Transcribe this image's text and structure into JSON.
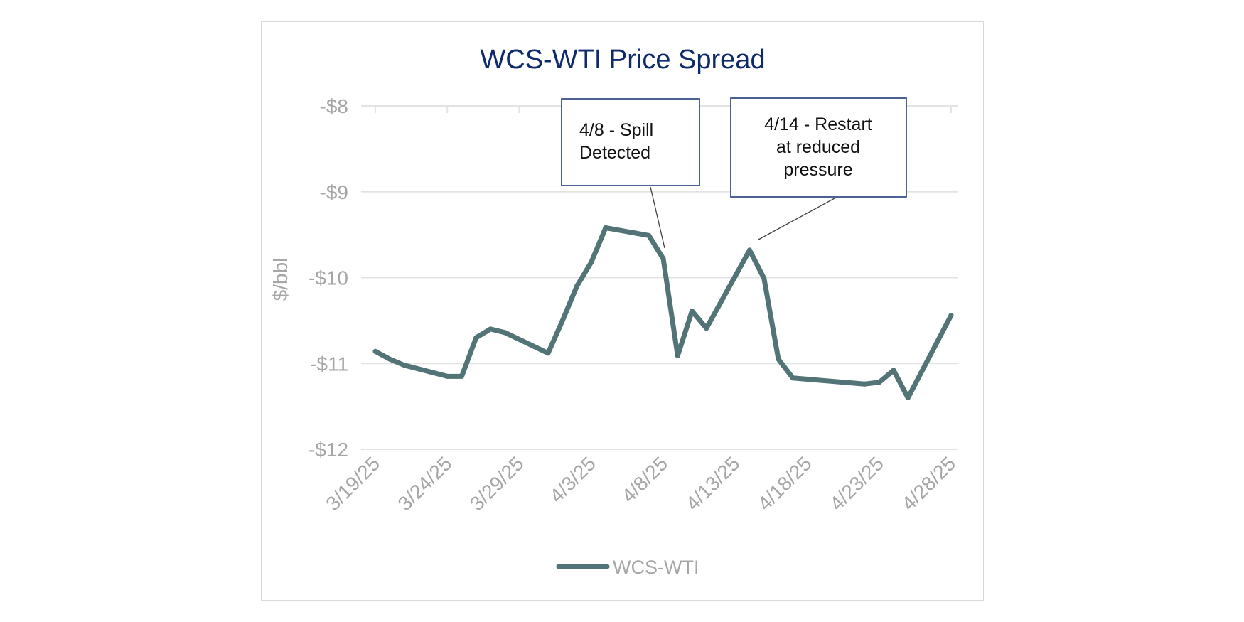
{
  "chart_data": {
    "type": "line",
    "title": "WCS-WTI Price Spread",
    "ylabel": "$/bbl",
    "xlabel": "",
    "ylim": [
      -12,
      -8
    ],
    "y_ticks": [
      -8,
      -9,
      -10,
      -11,
      -12
    ],
    "y_tick_labels": [
      "-$8",
      "-$9",
      "-$10",
      "-$11",
      "-$12"
    ],
    "x_range": [
      "2025-03-19",
      "2025-04-28"
    ],
    "x_ticks": [
      "2025-03-19",
      "2025-03-24",
      "2025-03-29",
      "2025-04-03",
      "2025-04-08",
      "2025-04-13",
      "2025-04-18",
      "2025-04-23",
      "2025-04-28"
    ],
    "x_tick_labels": [
      "3/19/25",
      "3/24/25",
      "3/29/25",
      "4/3/25",
      "4/8/25",
      "4/13/25",
      "4/18/25",
      "4/23/25",
      "4/28/25"
    ],
    "grid": "horizontal",
    "legend_position": "bottom",
    "line_color": "#537476",
    "series": [
      {
        "name": "WCS-WTI",
        "x": [
          "2025-03-19",
          "2025-03-20",
          "2025-03-21",
          "2025-03-24",
          "2025-03-25",
          "2025-03-26",
          "2025-03-27",
          "2025-03-28",
          "2025-03-31",
          "2025-04-01",
          "2025-04-02",
          "2025-04-03",
          "2025-04-04",
          "2025-04-07",
          "2025-04-08",
          "2025-04-09",
          "2025-04-10",
          "2025-04-11",
          "2025-04-14",
          "2025-04-15",
          "2025-04-16",
          "2025-04-17",
          "2025-04-22",
          "2025-04-23",
          "2025-04-24",
          "2025-04-25",
          "2025-04-28"
        ],
        "y": [
          -10.86,
          -10.95,
          -11.02,
          -11.15,
          -11.15,
          -10.7,
          -10.6,
          -10.64,
          -10.88,
          -10.5,
          -10.1,
          -9.82,
          -9.42,
          -9.51,
          -9.78,
          -10.91,
          -10.39,
          -10.59,
          -9.68,
          -10.01,
          -10.95,
          -11.17,
          -11.24,
          -11.22,
          -11.08,
          -11.4,
          -10.44
        ]
      }
    ],
    "annotations": [
      {
        "text_lines": [
          "4/8 - Spill",
          "Detected"
        ],
        "points_to": "2025-04-08",
        "align": "left"
      },
      {
        "text_lines": [
          "4/14 - Restart",
          "at reduced",
          "pressure"
        ],
        "points_to": "2025-04-14",
        "align": "center"
      }
    ]
  }
}
